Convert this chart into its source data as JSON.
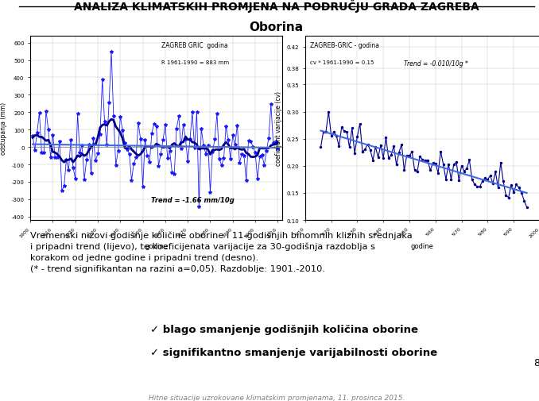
{
  "title": "ANALIZA KLIMATSKIH PROMJENA NA PODRUČJU GRADA ZAGREBA",
  "subtitle": "Oborina",
  "body_text": "Vremenski nizovi godišnje količine oborine i 11-godišnjih binomnih kliznih srednjaka\ni pripadni trend (lijevo), te koeficijenata varijacije za 30-godišnja razdoblja s\nkorakom od jedne godine i pripadni trend (desno).\n(* - trend signifikantan na razini a=0,05). Razdoblje: 1901.-2010.",
  "bullet1": "✓ blago smanjenje godišnjih količina oborine",
  "bullet2": "✓ signifikantno smanjenje varijabilnosti oborine",
  "footer": "Hitne situacije uzrokovane klimatskim promjenama, 11. prosinca 2015.",
  "page_num": "8",
  "bg_color": "#ffffff",
  "title_color": "#000000",
  "left_chart_title": "ZAGREB GRIC  godina",
  "left_chart_sub": "R 1961-1990 = 883 mm",
  "left_chart_trend": "Trend = -1.66 mm/10g",
  "left_ylabel": "odstupanja (mm)",
  "left_xlabel": "godine",
  "right_chart_title": "ZAGREB-GRIC - godina",
  "right_chart_sub": "cv * 1961-1990 = 0.15",
  "right_chart_trend": "Trend = -0.010/10g *",
  "right_ylabel": "coeficijent varijacije (cv)",
  "right_xlabel": "godine",
  "chart_line_color": "#00008B",
  "chart_trend_color": "#4169E1"
}
